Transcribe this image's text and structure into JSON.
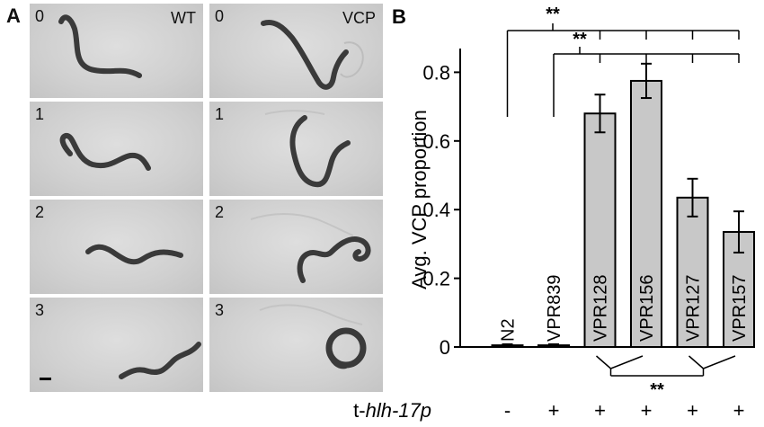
{
  "panel_a": {
    "letter": "A",
    "columns": [
      {
        "label": "WT",
        "frames": [
          "0",
          "1",
          "2",
          "3"
        ]
      },
      {
        "label": "VCP",
        "frames": [
          "0",
          "1",
          "2",
          "3"
        ]
      }
    ]
  },
  "chart_data": {
    "type": "bar",
    "panel_letter": "B",
    "categories": [
      "N2",
      "VPR839",
      "VPR128",
      "VPR156",
      "VPR127",
      "VPR157"
    ],
    "values": [
      0.005,
      0.005,
      0.68,
      0.775,
      0.435,
      0.335
    ],
    "errors": [
      0.003,
      0.003,
      0.055,
      0.05,
      0.055,
      0.06
    ],
    "ylabel": "Avg. VCP proportion",
    "ylim": [
      0,
      0.85
    ],
    "yticks": [
      "0",
      "0.2",
      "0.4",
      "0.6",
      "0.8"
    ],
    "ytick_values": [
      0,
      0.2,
      0.4,
      0.6,
      0.8
    ],
    "row_label_prefix": "t-",
    "row_label_italic": "hlh-17p",
    "row_signs": [
      "-",
      "+",
      "+",
      "+",
      "+",
      "+"
    ],
    "significance": "**",
    "bar_color": "#c8c8c8"
  }
}
